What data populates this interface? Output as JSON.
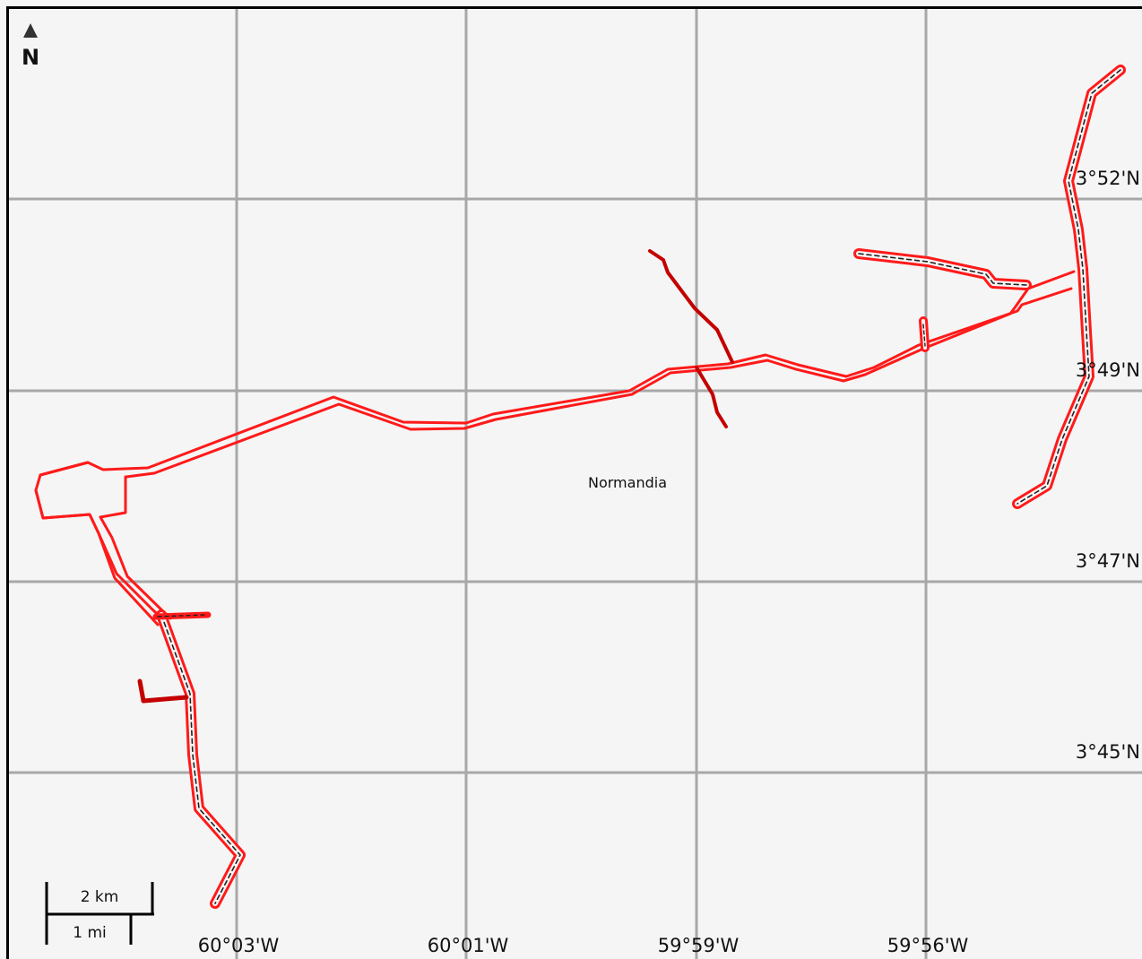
{
  "map": {
    "place_label": "Normandia",
    "north_label": "N",
    "scale_bar": {
      "km_label": "2 km",
      "mi_label": "1 mi"
    },
    "longitude_labels": [
      "60°03'W",
      "60°01'W",
      "59°59'W",
      "59°56'W"
    ],
    "latitude_labels": [
      "3°52'N",
      "3°49'N",
      "3°47'N",
      "3°45'N"
    ],
    "colors": {
      "background": "#f5f5f5",
      "grid": "#a8a8a8",
      "road": "#ff1a1a",
      "road_dark": "#c40000",
      "dash": "#222222",
      "text": "#111111"
    }
  }
}
